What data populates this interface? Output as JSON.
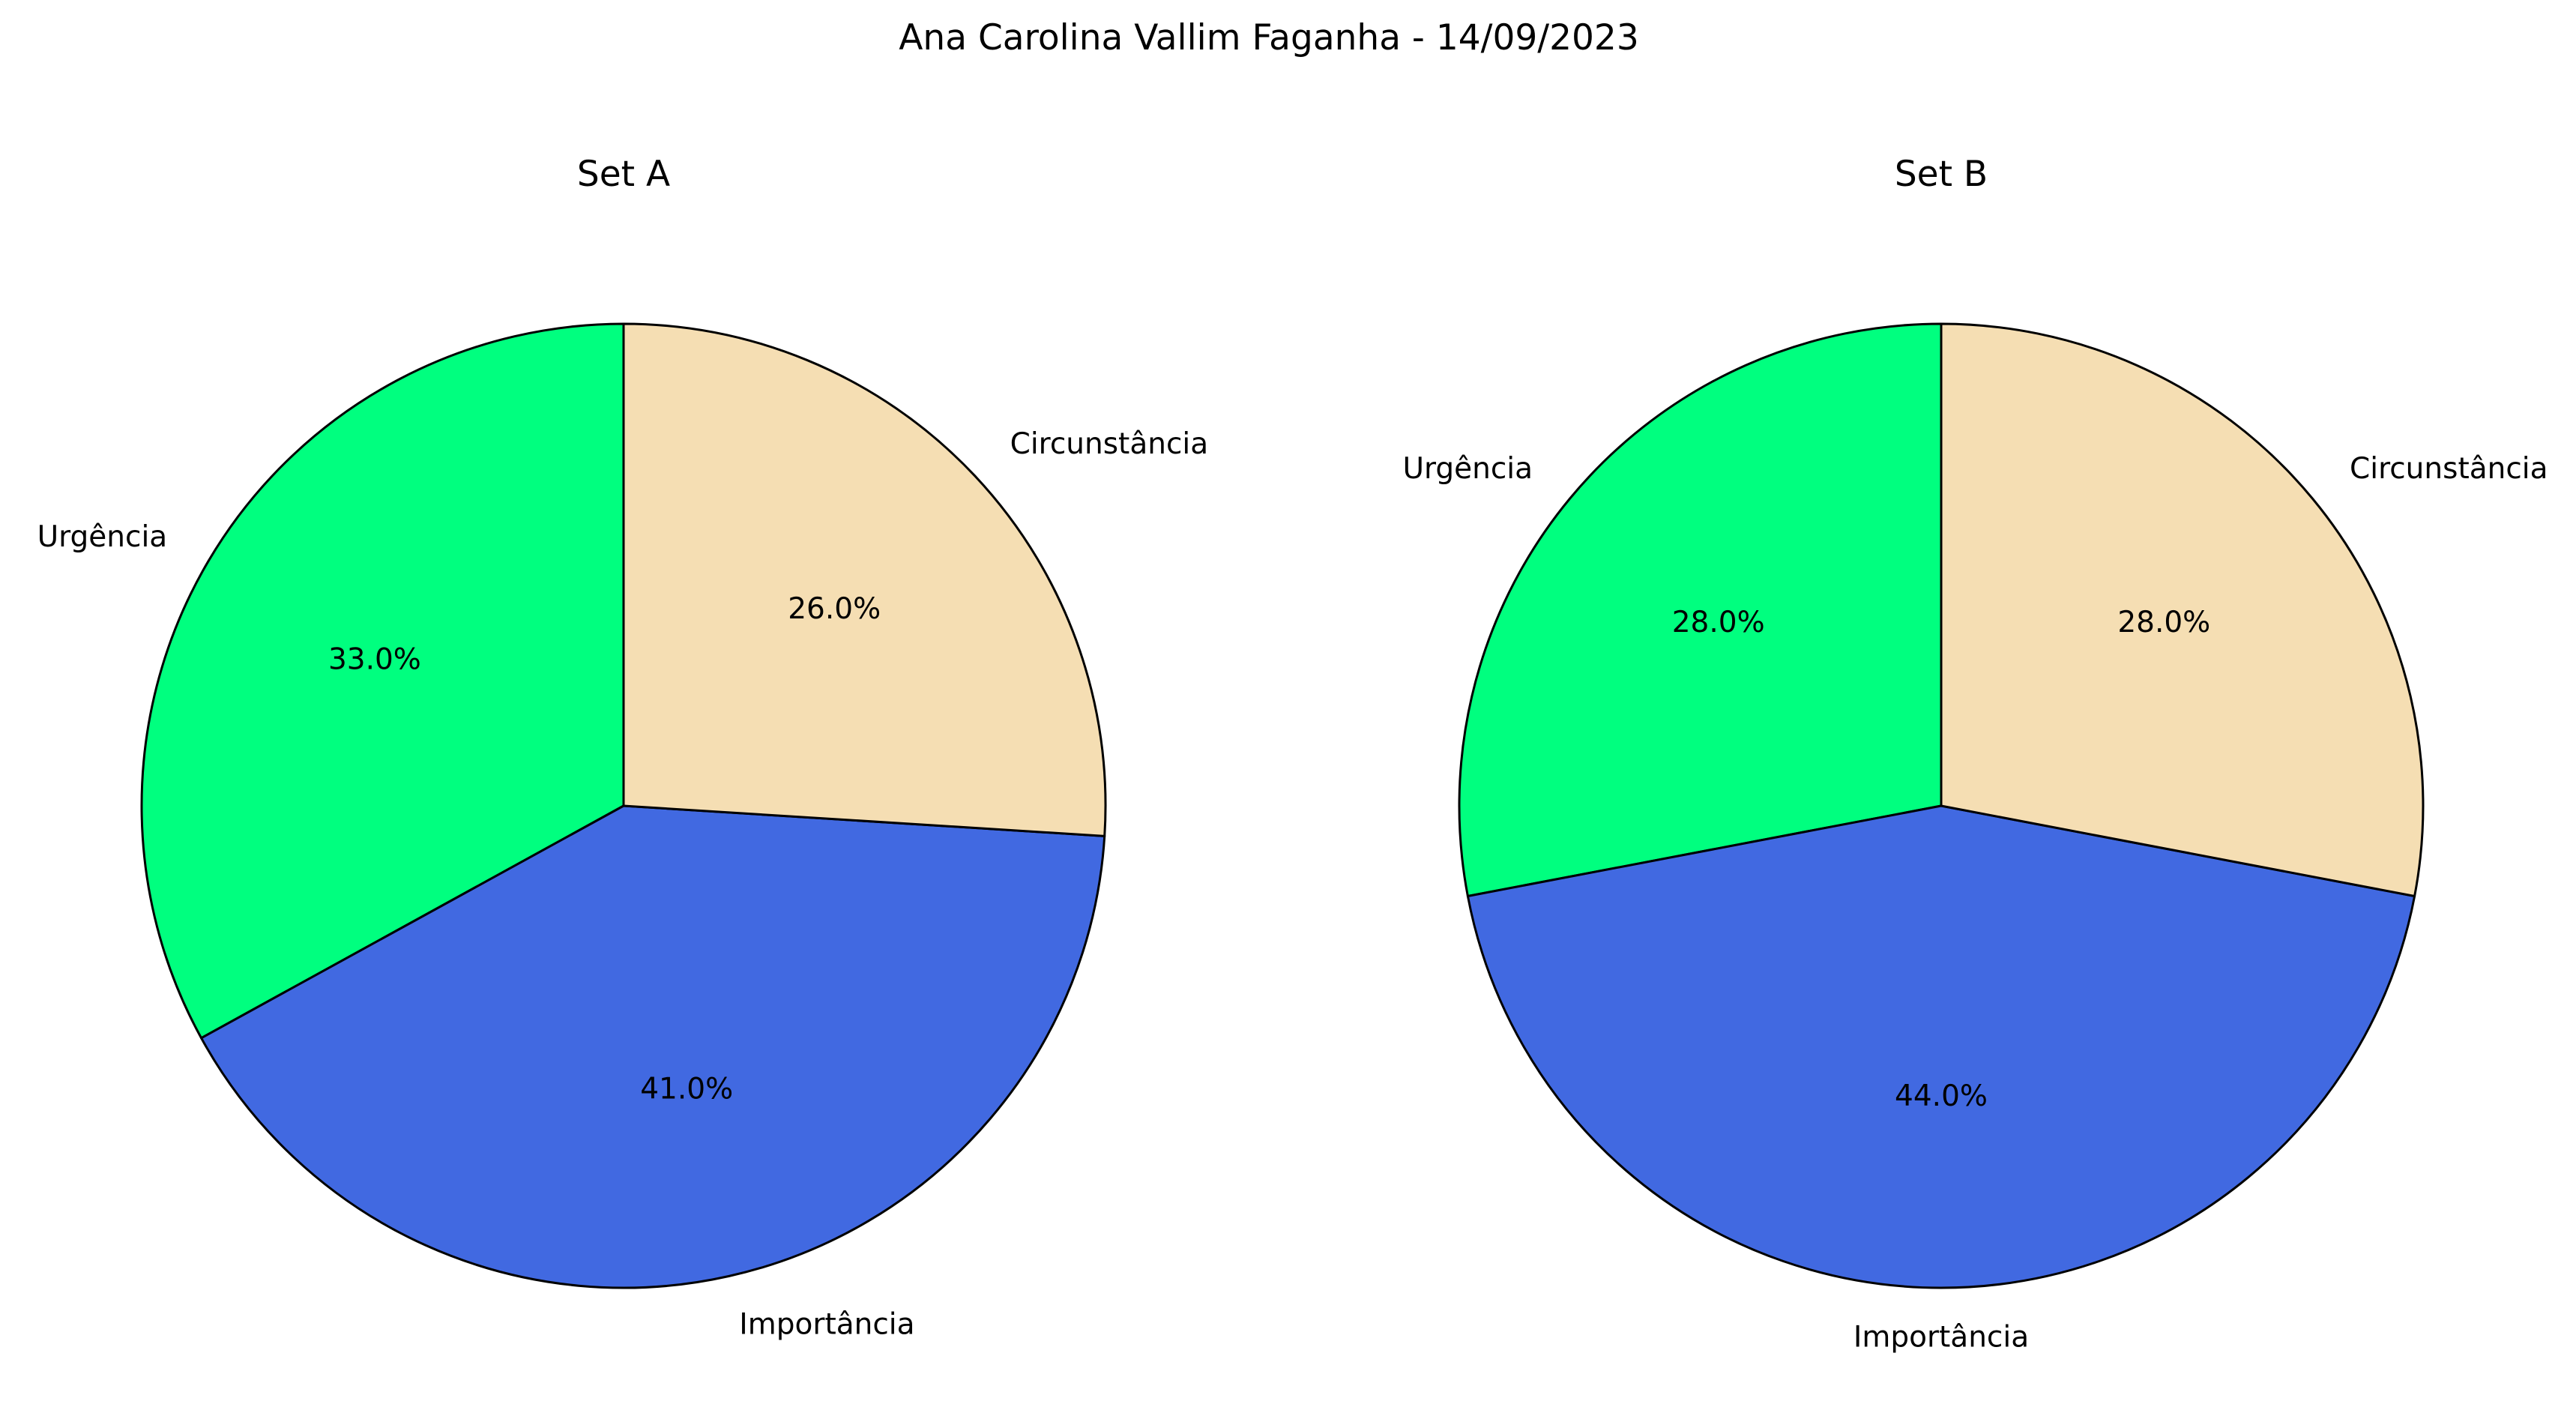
{
  "figure": {
    "title": "Ana Carolina Vallim Faganha - 14/09/2023"
  },
  "chart_data": [
    {
      "type": "pie",
      "title": "Set A",
      "start_angle_deg": 90,
      "direction": "counterclockwise",
      "edge_color": "#000000",
      "slices": [
        {
          "label": "Urgência",
          "value": 33.0,
          "pct_label": "33.0%",
          "color": "#00ff7f"
        },
        {
          "label": "Importância",
          "value": 41.0,
          "pct_label": "41.0%",
          "color": "#4169e1"
        },
        {
          "label": "Circunstância",
          "value": 26.0,
          "pct_label": "26.0%",
          "color": "#f5deb3"
        }
      ]
    },
    {
      "type": "pie",
      "title": "Set B",
      "start_angle_deg": 90,
      "direction": "counterclockwise",
      "edge_color": "#000000",
      "slices": [
        {
          "label": "Urgência",
          "value": 28.0,
          "pct_label": "28.0%",
          "color": "#00ff7f"
        },
        {
          "label": "Importância",
          "value": 44.0,
          "pct_label": "44.0%",
          "color": "#4169e1"
        },
        {
          "label": "Circunstância",
          "value": 28.0,
          "pct_label": "28.0%",
          "color": "#f5deb3"
        }
      ]
    }
  ]
}
